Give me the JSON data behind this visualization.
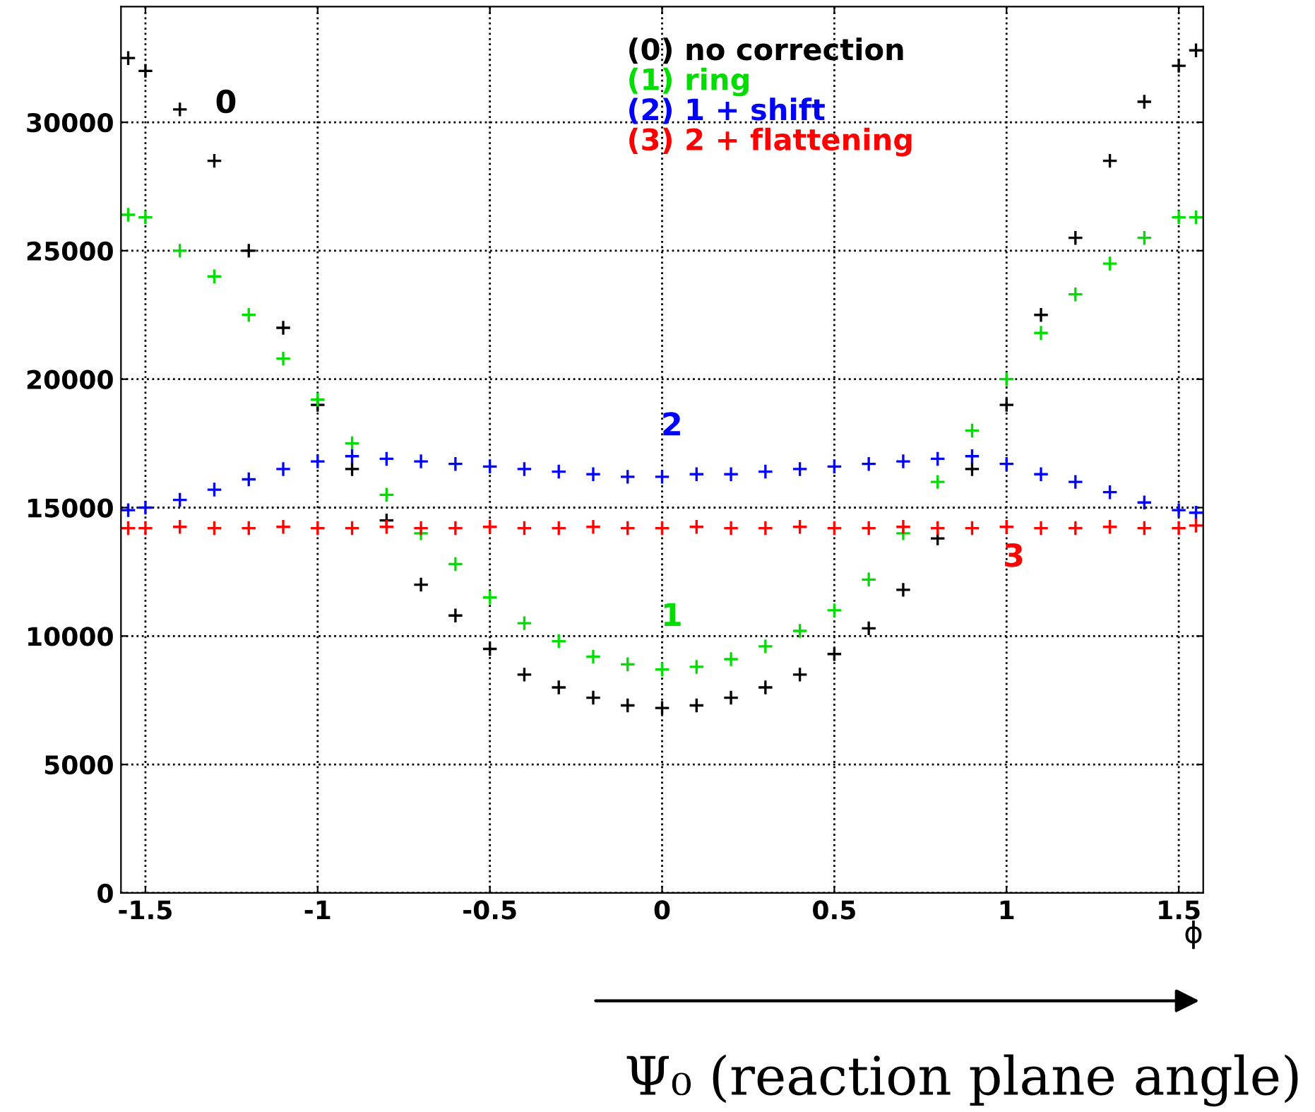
{
  "chart_data": {
    "type": "scatter",
    "marker": "cross",
    "xlabel": "ϕ",
    "x": [
      -1.55,
      -1.5,
      -1.4,
      -1.3,
      -1.2,
      -1.1,
      -1.0,
      -0.9,
      -0.8,
      -0.7,
      -0.6,
      -0.5,
      -0.4,
      -0.3,
      -0.2,
      -0.1,
      0,
      0.1,
      0.2,
      0.3,
      0.4,
      0.5,
      0.6,
      0.7,
      0.8,
      0.9,
      1.0,
      1.1,
      1.2,
      1.3,
      1.4,
      1.5,
      1.55
    ],
    "series": [
      {
        "name": "(0) no correction",
        "color": "#000000",
        "values": [
          32500,
          32000,
          30500,
          28500,
          25000,
          22000,
          19000,
          16500,
          14500,
          12000,
          10800,
          9500,
          8500,
          8000,
          7600,
          7300,
          7200,
          7300,
          7600,
          8000,
          8500,
          9300,
          10300,
          11800,
          13800,
          16500,
          19000,
          22500,
          25500,
          28500,
          30800,
          32200,
          32800
        ]
      },
      {
        "name": "(1) ring",
        "color": "#00dd00",
        "values": [
          26400,
          26300,
          25000,
          24000,
          22500,
          20800,
          19200,
          17500,
          15500,
          14000,
          12800,
          11500,
          10500,
          9800,
          9200,
          8900,
          8700,
          8800,
          9100,
          9600,
          10200,
          11000,
          12200,
          14000,
          16000,
          18000,
          20000,
          21800,
          23300,
          24500,
          25500,
          26300,
          26300
        ]
      },
      {
        "name": "(2) 1 + shift",
        "color": "#0000ff",
        "values": [
          14900,
          15000,
          15300,
          15700,
          16100,
          16500,
          16800,
          17000,
          16900,
          16800,
          16700,
          16600,
          16500,
          16400,
          16300,
          16200,
          16200,
          16300,
          16300,
          16400,
          16500,
          16600,
          16700,
          16800,
          16900,
          17000,
          16700,
          16300,
          16000,
          15600,
          15200,
          14900,
          14800
        ]
      },
      {
        "name": "(3) 2 + flattening",
        "color": "#ff0000",
        "values": [
          14200,
          14200,
          14250,
          14200,
          14200,
          14250,
          14200,
          14200,
          14250,
          14200,
          14200,
          14250,
          14200,
          14200,
          14250,
          14200,
          14200,
          14250,
          14200,
          14200,
          14250,
          14200,
          14200,
          14250,
          14200,
          14200,
          14250,
          14200,
          14200,
          14250,
          14200,
          14200,
          14300
        ]
      }
    ],
    "annotations": [
      "0",
      "2",
      "1",
      "3",
      "Ψ₀ (reaction plane angle)"
    ],
    "xlim": [
      -1.571,
      1.571
    ],
    "ylim": [
      0,
      34500
    ],
    "xticks": [
      -1.5,
      -1,
      -0.5,
      0,
      0.5,
      1,
      1.5
    ],
    "yticks": [
      0,
      5000,
      10000,
      15000,
      20000,
      25000,
      30000
    ],
    "grid": true,
    "legend": "top"
  }
}
